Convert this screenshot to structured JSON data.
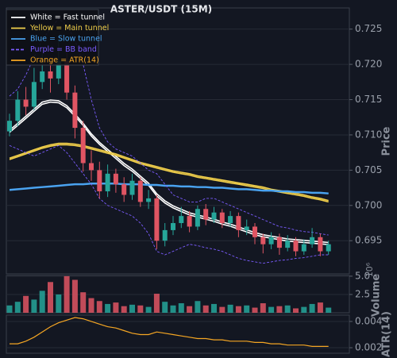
{
  "chart_data": [
    {
      "type": "candlestick",
      "title": "ASTER/USDT (15M)",
      "y_label": "Price",
      "categories": [
        null,
        null,
        null,
        null,
        null,
        null,
        null,
        null,
        null,
        null,
        null,
        null,
        null,
        null,
        null,
        null,
        null,
        null,
        null,
        null,
        null,
        null,
        null,
        null,
        null,
        null,
        null,
        null,
        null,
        null,
        null,
        null,
        null,
        null,
        null,
        null,
        null,
        null,
        null,
        null
      ],
      "open": [
        0.7105,
        0.712,
        0.715,
        0.714,
        0.7175,
        0.719,
        0.718,
        0.7205,
        0.716,
        0.711,
        0.706,
        0.705,
        0.702,
        0.7045,
        0.703,
        0.7015,
        0.7035,
        0.7005,
        0.701,
        0.695,
        0.6965,
        0.6975,
        0.6985,
        0.697,
        0.6995,
        0.698,
        0.699,
        0.6975,
        0.6985,
        0.6965,
        0.697,
        0.6955,
        0.6945,
        0.6955,
        0.694,
        0.695,
        0.6935,
        0.6945,
        0.6955,
        0.6935
      ],
      "high": [
        0.713,
        0.7162,
        0.7168,
        0.7195,
        0.7215,
        0.721,
        0.7235,
        0.7218,
        0.717,
        0.712,
        0.7078,
        0.7062,
        0.7058,
        0.7052,
        0.704,
        0.7045,
        0.704,
        0.7022,
        0.7015,
        0.6975,
        0.6985,
        0.6998,
        0.6992,
        0.7,
        0.7002,
        0.6998,
        0.6995,
        0.6992,
        0.699,
        0.698,
        0.6975,
        0.696,
        0.6962,
        0.696,
        0.6958,
        0.6955,
        0.6952,
        0.6968,
        0.696,
        0.695
      ],
      "low": [
        0.7098,
        0.7112,
        0.7128,
        0.7135,
        0.7165,
        0.716,
        0.7172,
        0.715,
        0.7095,
        0.7048,
        0.7035,
        0.701,
        0.7012,
        0.7018,
        0.7005,
        0.7008,
        0.6998,
        0.6995,
        0.6938,
        0.6942,
        0.6958,
        0.6968,
        0.6962,
        0.6965,
        0.6972,
        0.6975,
        0.6968,
        0.697,
        0.6955,
        0.6958,
        0.6945,
        0.6932,
        0.6938,
        0.693,
        0.6935,
        0.6928,
        0.693,
        0.694,
        0.6928,
        0.693
      ],
      "close": [
        0.712,
        0.715,
        0.714,
        0.7175,
        0.719,
        0.718,
        0.7205,
        0.716,
        0.711,
        0.706,
        0.705,
        0.702,
        0.7045,
        0.703,
        0.7015,
        0.7035,
        0.7005,
        0.701,
        0.695,
        0.6965,
        0.6975,
        0.6985,
        0.697,
        0.6995,
        0.698,
        0.699,
        0.6975,
        0.6985,
        0.6965,
        0.697,
        0.6955,
        0.6945,
        0.6955,
        0.694,
        0.695,
        0.6935,
        0.6945,
        0.6955,
        0.6935,
        0.6945
      ],
      "up_color": "#26a69a",
      "down_color": "#e05563",
      "ylim": [
        0.6903,
        0.728
      ],
      "yticks": [
        0.695,
        {
          "value": 0.7,
          "label": "0.700"
        },
        0.705,
        {
          "value": 0.71,
          "label": "0.710"
        },
        0.715,
        {
          "value": 0.72,
          "label": "0.720"
        },
        0.725
      ],
      "grid": true,
      "legend": "upper left",
      "series": [
        {
          "name": "White = Fast tunnel",
          "color": "#ffffff",
          "dashed": false,
          "upper": [
            0.71065,
            0.71165,
            0.71265,
            0.71365,
            0.71465,
            0.71495,
            0.71485,
            0.71415,
            0.71295,
            0.71165,
            0.71015,
            0.70895,
            0.70795,
            0.70695,
            0.70595,
            0.70515,
            0.70415,
            0.70315,
            0.70165,
            0.70065,
            0.69995,
            0.69945,
            0.69895,
            0.69865,
            0.69835,
            0.69805,
            0.69765,
            0.69735,
            0.69695,
            0.69655,
            0.69615,
            0.69585,
            0.69565,
            0.69545,
            0.69525,
            0.69515,
            0.69505,
            0.69495,
            0.69485,
            0.69475
          ],
          "lower": [
            0.71035,
            0.71135,
            0.71235,
            0.71335,
            0.71435,
            0.71465,
            0.71455,
            0.71385,
            0.71265,
            0.71135,
            0.70985,
            0.70865,
            0.70765,
            0.70665,
            0.70565,
            0.70485,
            0.70385,
            0.70285,
            0.70135,
            0.70035,
            0.69965,
            0.69915,
            0.69865,
            0.69835,
            0.69805,
            0.69775,
            0.69735,
            0.69705,
            0.69665,
            0.69625,
            0.69585,
            0.69555,
            0.69535,
            0.69515,
            0.69495,
            0.69485,
            0.69475,
            0.69465,
            0.69455,
            0.69445
          ]
        },
        {
          "name": "Yellow = Main tunnel",
          "color": "#f2d04b",
          "dashed": false,
          "upper": [
            0.7067,
            0.7071,
            0.7075,
            0.7079,
            0.7083,
            0.7086,
            0.7088,
            0.7088,
            0.7087,
            0.7085,
            0.7082,
            0.7079,
            0.7076,
            0.7073,
            0.7069,
            0.7065,
            0.7061,
            0.7058,
            0.7055,
            0.7052,
            0.7049,
            0.7047,
            0.7045,
            0.7042,
            0.704,
            0.7038,
            0.7036,
            0.7034,
            0.7032,
            0.703,
            0.7028,
            0.7026,
            0.7023,
            0.7021,
            0.7019,
            0.7017,
            0.7015,
            0.7012,
            0.701,
            0.7007
          ],
          "lower": [
            0.7065,
            0.7069,
            0.7073,
            0.7077,
            0.7081,
            0.7084,
            0.7086,
            0.7086,
            0.7085,
            0.7083,
            0.708,
            0.7077,
            0.7074,
            0.7071,
            0.7067,
            0.7063,
            0.7059,
            0.7056,
            0.7053,
            0.705,
            0.7047,
            0.7045,
            0.7043,
            0.704,
            0.7038,
            0.7036,
            0.7034,
            0.7032,
            0.703,
            0.7028,
            0.7026,
            0.7024,
            0.7021,
            0.7019,
            0.7017,
            0.7015,
            0.7013,
            0.701,
            0.7008,
            0.7005
          ]
        },
        {
          "name": "Blue = Slow tunnel",
          "color": "#4aa3f0",
          "dashed": false,
          "upper": [
            0.70225,
            0.70235,
            0.70245,
            0.70255,
            0.70265,
            0.70275,
            0.70285,
            0.70295,
            0.70305,
            0.70305,
            0.70315,
            0.70315,
            0.70315,
            0.70315,
            0.70305,
            0.70305,
            0.70305,
            0.70295,
            0.70295,
            0.70285,
            0.70285,
            0.70275,
            0.70275,
            0.70265,
            0.70265,
            0.70255,
            0.70255,
            0.70245,
            0.70235,
            0.70235,
            0.70225,
            0.70215,
            0.70215,
            0.70205,
            0.70205,
            0.70195,
            0.70195,
            0.70185,
            0.70185,
            0.70175
          ],
          "lower": [
            0.70215,
            0.70225,
            0.70235,
            0.70245,
            0.70255,
            0.70265,
            0.70275,
            0.70285,
            0.70295,
            0.70295,
            0.70305,
            0.70305,
            0.70305,
            0.70305,
            0.70295,
            0.70295,
            0.70295,
            0.70285,
            0.70285,
            0.70275,
            0.70275,
            0.70265,
            0.70265,
            0.70255,
            0.70255,
            0.70245,
            0.70245,
            0.70235,
            0.70225,
            0.70225,
            0.70215,
            0.70205,
            0.70205,
            0.70195,
            0.70195,
            0.70185,
            0.70185,
            0.70175,
            0.70175,
            0.70165
          ]
        },
        {
          "name": "Purple = BB band",
          "color": "#7b5cff",
          "dashed": true,
          "upper": [
            0.7155,
            0.7165,
            0.7185,
            0.721,
            0.7235,
            0.725,
            0.7265,
            0.7255,
            0.7235,
            0.72,
            0.715,
            0.711,
            0.709,
            0.708,
            0.7075,
            0.707,
            0.706,
            0.705,
            0.7045,
            0.703,
            0.7015,
            0.701,
            0.7005,
            0.7005,
            0.701,
            0.701,
            0.7005,
            0.7,
            0.6995,
            0.699,
            0.6985,
            0.698,
            0.6975,
            0.697,
            0.6968,
            0.6965,
            0.6963,
            0.6962,
            0.696,
            0.6958
          ],
          "lower": [
            0.7085,
            0.708,
            0.7075,
            0.707,
            0.7075,
            0.708,
            0.7085,
            0.7075,
            0.706,
            0.7045,
            0.703,
            0.701,
            0.7,
            0.6995,
            0.699,
            0.6985,
            0.6975,
            0.696,
            0.6935,
            0.693,
            0.6935,
            0.694,
            0.6945,
            0.6943,
            0.694,
            0.6938,
            0.6935,
            0.693,
            0.6925,
            0.6922,
            0.692,
            0.6918,
            0.692,
            0.6922,
            0.6923,
            0.6925,
            0.6926,
            0.6928,
            0.693,
            0.693
          ]
        }
      ]
    },
    {
      "type": "bar",
      "y_label": "Volume",
      "offset_label": "10⁶",
      "values": [
        1.0,
        1.5,
        2.3,
        1.8,
        3.0,
        4.2,
        2.5,
        5.0,
        4.5,
        2.8,
        2.0,
        1.6,
        1.2,
        1.4,
        0.9,
        1.1,
        1.0,
        0.8,
        2.6,
        1.5,
        1.0,
        1.3,
        0.9,
        1.6,
        1.0,
        1.2,
        0.8,
        1.1,
        0.9,
        1.0,
        0.7,
        1.3,
        0.8,
        0.9,
        1.0,
        0.6,
        0.8,
        1.2,
        1.4,
        0.7
      ],
      "ylim": [
        0,
        5.1
      ],
      "yticks": [
        2.5,
        {
          "value": 5,
          "label": "5.0"
        }
      ],
      "grid": true
    },
    {
      "type": "line",
      "y_label": "ATR(14)",
      "series": [
        {
          "name": "Orange = ATR(14)",
          "color": "#f5a623",
          "values": [
            0.0023,
            0.0023,
            0.0025,
            0.0028,
            0.0032,
            0.0036,
            0.0039,
            0.0041,
            0.0043,
            0.0042,
            0.004,
            0.0038,
            0.0036,
            0.0035,
            0.0033,
            0.0031,
            0.003,
            0.003,
            0.0032,
            0.0031,
            0.003,
            0.0029,
            0.0028,
            0.0027,
            0.0027,
            0.0026,
            0.0026,
            0.0025,
            0.0025,
            0.0025,
            0.0024,
            0.0024,
            0.0023,
            0.0023,
            0.0022,
            0.0022,
            0.0022,
            0.0021,
            0.0021,
            0.0021
          ]
        }
      ],
      "ylim": [
        0.00158,
        0.00448
      ],
      "yticks": [
        0.002,
        0.004
      ],
      "grid": true
    }
  ]
}
